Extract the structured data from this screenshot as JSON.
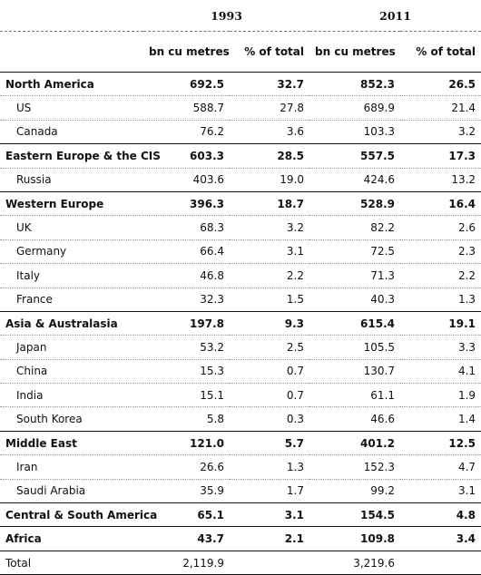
{
  "header": {
    "years": [
      "1993",
      "2011"
    ],
    "units": [
      "bn cu metres",
      "% of total",
      "bn cu metres",
      "% of total"
    ]
  },
  "rows": [
    {
      "name": "North America",
      "type": "region",
      "v1": "692.5",
      "p1": "32.7",
      "v2": "852.3",
      "p2": "26.5"
    },
    {
      "name": "US",
      "type": "sub",
      "v1": "588.7",
      "p1": "27.8",
      "v2": "689.9",
      "p2": "21.4"
    },
    {
      "name": "Canada",
      "type": "sub",
      "v1": "76.2",
      "p1": "3.6",
      "v2": "103.3",
      "p2": "3.2"
    },
    {
      "name": "Eastern Europe & the CIS",
      "type": "region",
      "v1": "603.3",
      "p1": "28.5",
      "v2": "557.5",
      "p2": "17.3"
    },
    {
      "name": "Russia",
      "type": "sub",
      "v1": "403.6",
      "p1": "19.0",
      "v2": "424.6",
      "p2": "13.2"
    },
    {
      "name": "Western Europe",
      "type": "region",
      "v1": "396.3",
      "p1": "18.7",
      "v2": "528.9",
      "p2": "16.4"
    },
    {
      "name": "UK",
      "type": "sub",
      "v1": "68.3",
      "p1": "3.2",
      "v2": "82.2",
      "p2": "2.6"
    },
    {
      "name": "Germany",
      "type": "sub",
      "v1": "66.4",
      "p1": "3.1",
      "v2": "72.5",
      "p2": "2.3"
    },
    {
      "name": "Italy",
      "type": "sub",
      "v1": "46.8",
      "p1": "2.2",
      "v2": "71.3",
      "p2": "2.2"
    },
    {
      "name": "France",
      "type": "sub",
      "v1": "32.3",
      "p1": "1.5",
      "v2": "40.3",
      "p2": "1.3"
    },
    {
      "name": "Asia & Australasia",
      "type": "region",
      "v1": "197.8",
      "p1": "9.3",
      "v2": "615.4",
      "p2": "19.1"
    },
    {
      "name": "Japan",
      "type": "sub",
      "v1": "53.2",
      "p1": "2.5",
      "v2": "105.5",
      "p2": "3.3"
    },
    {
      "name": "China",
      "type": "sub",
      "v1": "15.3",
      "p1": "0.7",
      "v2": "130.7",
      "p2": "4.1"
    },
    {
      "name": "India",
      "type": "sub",
      "v1": "15.1",
      "p1": "0.7",
      "v2": "61.1",
      "p2": "1.9"
    },
    {
      "name": "South Korea",
      "type": "sub",
      "v1": "5.8",
      "p1": "0.3",
      "v2": "46.6",
      "p2": "1.4"
    },
    {
      "name": "Middle East",
      "type": "region",
      "v1": "121.0",
      "p1": "5.7",
      "v2": "401.2",
      "p2": "12.5"
    },
    {
      "name": "Iran",
      "type": "sub",
      "v1": "26.6",
      "p1": "1.3",
      "v2": "152.3",
      "p2": "4.7"
    },
    {
      "name": "Saudi Arabia",
      "type": "sub",
      "v1": "35.9",
      "p1": "1.7",
      "v2": "99.2",
      "p2": "3.1"
    },
    {
      "name": "Central & South America",
      "type": "region",
      "v1": "65.1",
      "p1": "3.1",
      "v2": "154.5",
      "p2": "4.8"
    },
    {
      "name": "Africa",
      "type": "region",
      "v1": "43.7",
      "p1": "2.1",
      "v2": "109.8",
      "p2": "3.4"
    },
    {
      "name": "Total",
      "type": "total",
      "v1": "2,119.9",
      "p1": "",
      "v2": "3,219.6",
      "p2": ""
    }
  ]
}
